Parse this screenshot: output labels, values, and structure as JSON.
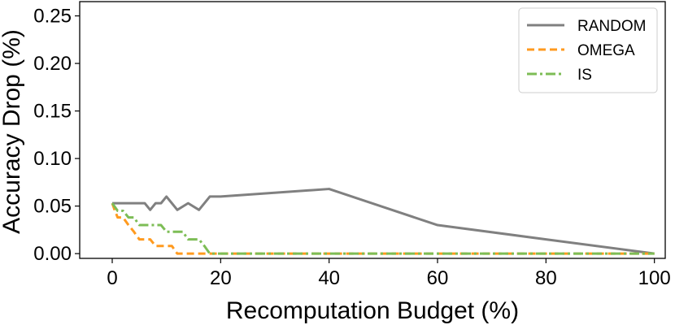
{
  "chart_data": {
    "type": "line",
    "title": "",
    "xlabel": "Recomputation Budget (%)",
    "ylabel": "Accuracy Drop (%)",
    "xlim": [
      -6,
      102
    ],
    "ylim": [
      -0.005,
      0.265
    ],
    "xticks": [
      "0",
      "20",
      "40",
      "60",
      "80",
      "100"
    ],
    "xtick_values": [
      0,
      20,
      40,
      60,
      80,
      100
    ],
    "yticks": [
      "0.00",
      "0.05",
      "0.10",
      "0.15",
      "0.20",
      "0.25"
    ],
    "ytick_values": [
      0,
      0.05,
      0.1,
      0.15,
      0.2,
      0.25
    ],
    "grid": false,
    "legend_position": "top-right",
    "series": [
      {
        "name": "RANDOM",
        "color": "#808080",
        "dash": "solid",
        "x": [
          0,
          2,
          4,
          6,
          7,
          8,
          9,
          10,
          11,
          12,
          14,
          16,
          18,
          20,
          40,
          60,
          80,
          100
        ],
        "y": [
          0.053,
          0.053,
          0.053,
          0.053,
          0.046,
          0.053,
          0.053,
          0.06,
          0.053,
          0.046,
          0.053,
          0.046,
          0.06,
          0.06,
          0.068,
          0.03,
          0.015,
          0.0
        ]
      },
      {
        "name": "OMEGA",
        "color": "#ff9a1f",
        "dash": "dashed",
        "x": [
          0,
          0.5,
          1,
          2,
          3,
          4,
          5,
          6,
          7,
          8,
          10,
          11,
          12,
          14,
          16,
          18,
          20,
          40,
          60,
          80,
          100
        ],
        "y": [
          0.053,
          0.045,
          0.038,
          0.038,
          0.03,
          0.023,
          0.015,
          0.015,
          0.015,
          0.008,
          0.008,
          0.008,
          0.0,
          0.0,
          0.0,
          0.0,
          0.0,
          0.0,
          0.0,
          0.0,
          0.0
        ]
      },
      {
        "name": "IS",
        "color": "#7dbd56",
        "dash": "dashdot",
        "x": [
          0,
          1,
          2,
          3,
          4,
          5,
          6,
          7,
          8,
          9,
          10,
          11,
          12,
          13,
          14,
          15,
          16,
          17,
          18,
          20,
          40,
          60,
          80,
          100
        ],
        "y": [
          0.053,
          0.045,
          0.045,
          0.038,
          0.038,
          0.03,
          0.03,
          0.03,
          0.03,
          0.03,
          0.023,
          0.023,
          0.023,
          0.023,
          0.015,
          0.015,
          0.015,
          0.008,
          0.0,
          0.0,
          0.0,
          0.0,
          0.0,
          0.0
        ]
      }
    ]
  }
}
